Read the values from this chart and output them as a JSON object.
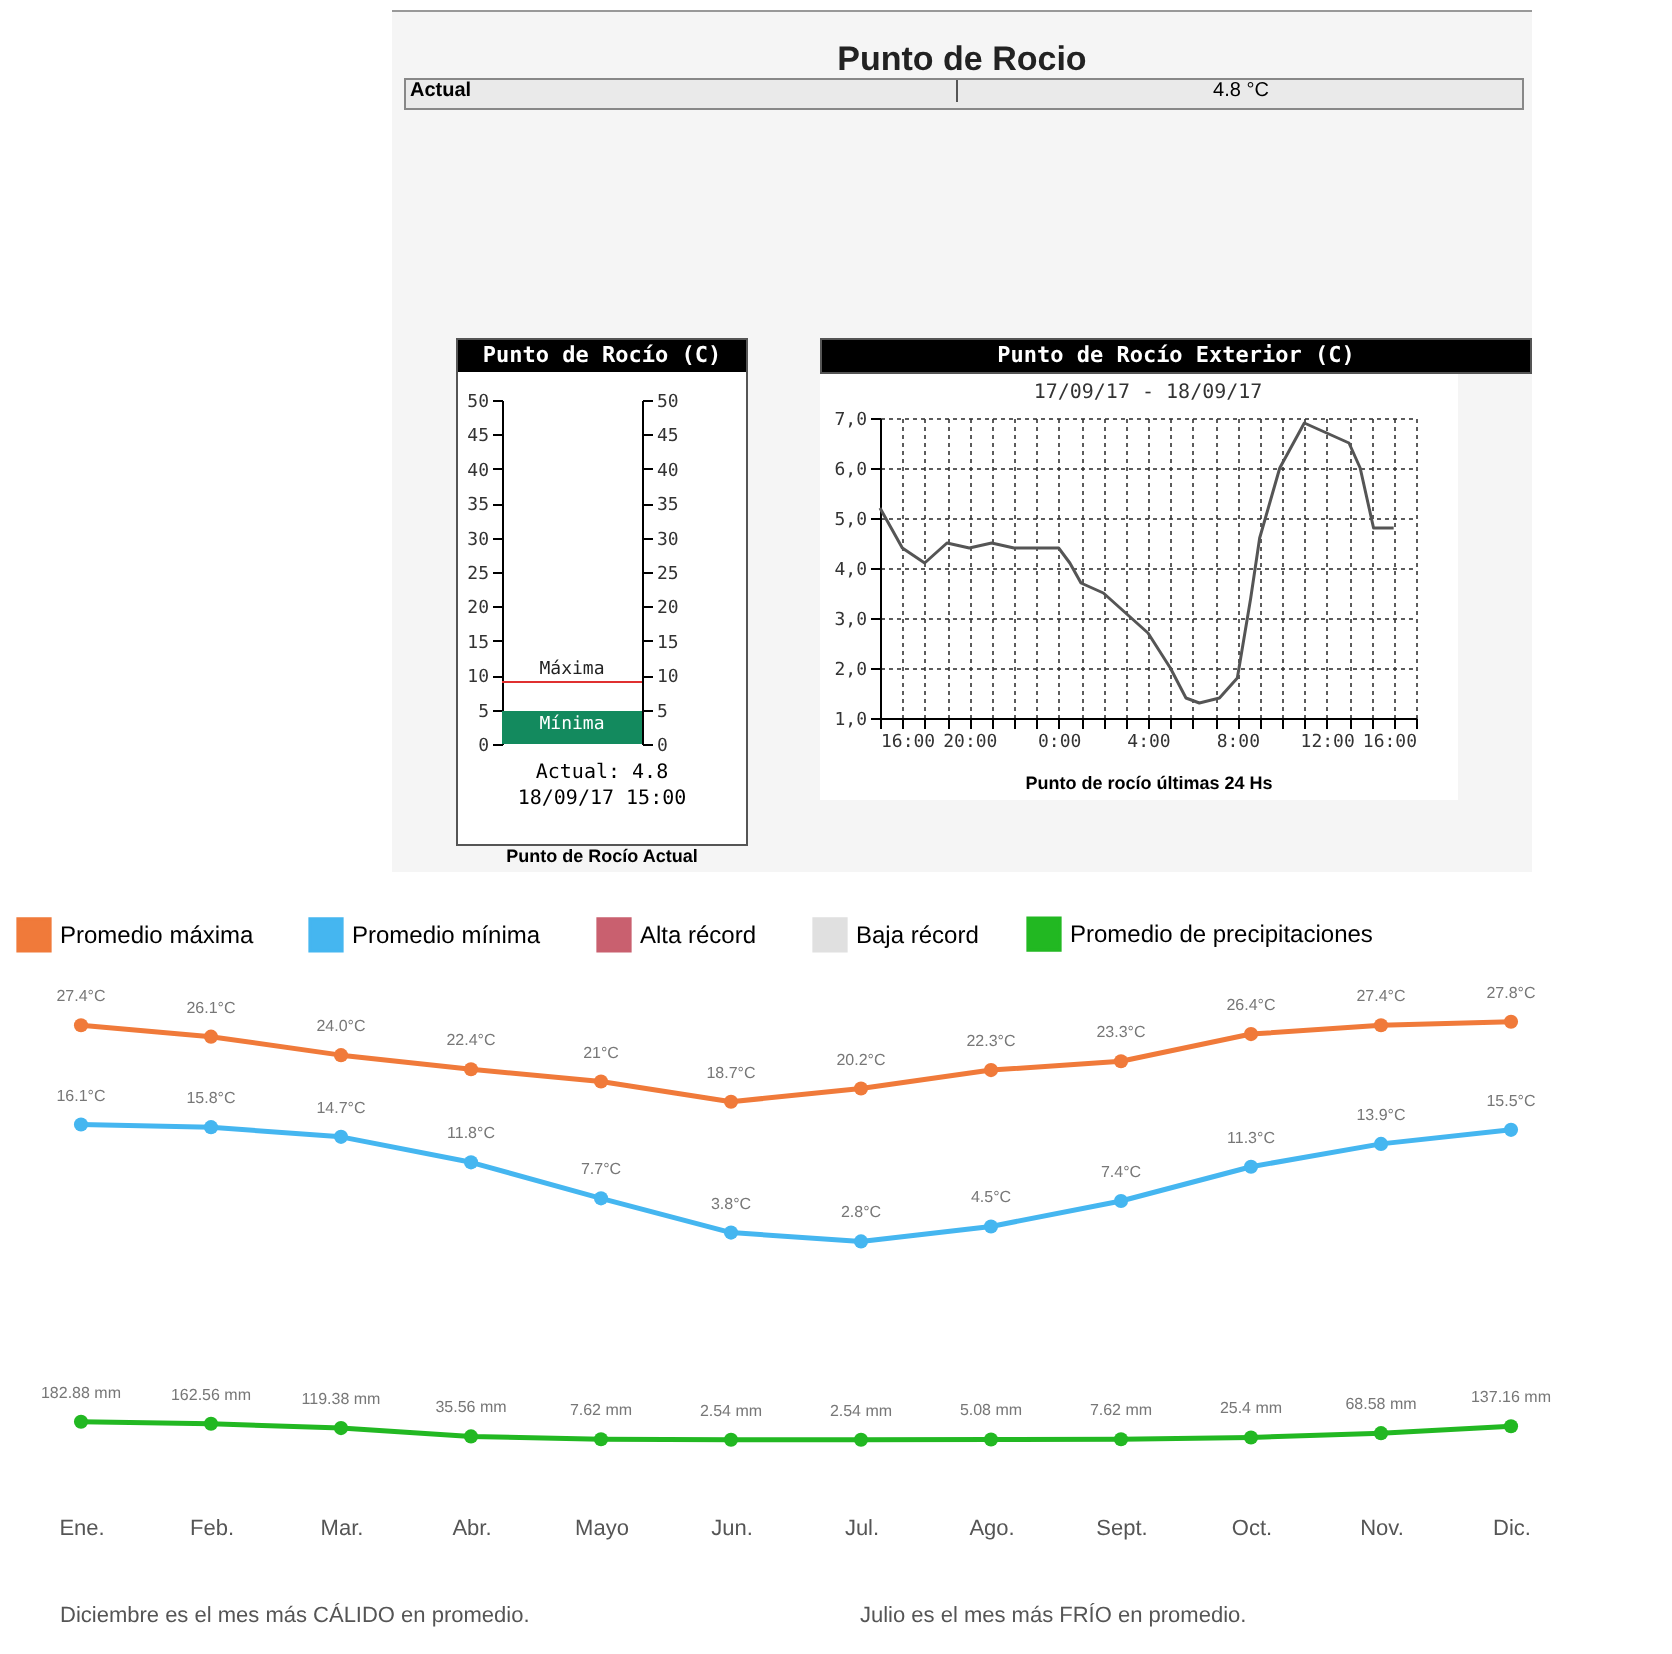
{
  "chart_data": [
    {
      "type": "other",
      "title": "Punto de Rocio",
      "annotations": [
        "Actual",
        "4.8 °C"
      ]
    },
    {
      "type": "bar",
      "title": "Punto de Rocío (C)",
      "xlabel": "Punto de Rocío Actual",
      "categories": [
        null
      ],
      "values": [
        4.8
      ],
      "colors": [
        "#138a5e"
      ],
      "ylim": [
        0,
        50
      ],
      "yticks": [
        0,
        5,
        10,
        15,
        20,
        25,
        30,
        35,
        40,
        45,
        50
      ],
      "y2lim": [
        0,
        50
      ],
      "y2ticks": [
        0,
        5,
        10,
        15,
        20,
        25,
        30,
        35,
        40,
        45,
        50
      ],
      "ref_lines": [
        {
          "axis": "y",
          "value": 9,
          "label": "Máxima",
          "color": "#e03030"
        }
      ],
      "annotations": [
        "Mínima",
        "Actual: 4.8",
        "18/09/17 15:00"
      ]
    },
    {
      "type": "line",
      "title": "Punto de Rocío Exterior (C)",
      "subtitle": "17/09/17 - 18/09/17",
      "xlabel": "Punto de rocío últimas 24 Hs",
      "grid": true,
      "marker": "none",
      "line_style": "solid",
      "x": [
        "--09-17T16:00",
        "--09-17T16:30",
        "--09-17T17:00",
        "--09-17T18:00",
        "--09-17T19:00",
        "--09-17T20:00",
        "--09-17T21:00",
        "--09-17T22:00",
        "--09-17T23:00",
        "--09-18T00:00",
        "--09-18T00:30",
        "--09-18T01:00",
        "--09-18T02:00",
        "--09-18T03:00",
        "--09-18T04:00",
        "--09-18T05:00",
        "--09-18T05:42",
        "--09-18T06:18",
        "--09-18T07:12",
        "--09-18T08:00",
        "--09-18T08:36",
        "--09-18T09:00",
        "--09-18T09:54",
        "--09-18T11:00",
        "--09-18T12:00",
        "--09-18T13:00",
        "--09-18T13:30",
        "--09-18T14:06",
        "--09-18T15:00"
      ],
      "series": [
        {
          "color": "#555555",
          "values": [
            5.2,
            4.8,
            4.4,
            4.1,
            4.5,
            4.4,
            4.5,
            4.4,
            4.4,
            4.4,
            4.1,
            3.7,
            3.5,
            3.1,
            2.7,
            2.0,
            1.4,
            1.3,
            1.4,
            1.8,
            3.4,
            4.6,
            6.0,
            6.9,
            6.7,
            6.5,
            6.0,
            4.8,
            4.8
          ]
        }
      ],
      "xlim": [
        "--09-17T16:00",
        "--09-18T16:00"
      ],
      "xticks": [
        {
          "value": "--09-17T16:00",
          "label": "16:00"
        },
        {
          "value": "--09-17T17:00",
          "label": null
        },
        {
          "value": "--09-17T18:00",
          "label": null
        },
        {
          "value": "--09-17T19:00",
          "label": null
        },
        {
          "value": "--09-17T20:00",
          "label": "20:00"
        },
        {
          "value": "--09-17T21:00",
          "label": null
        },
        {
          "value": "--09-17T22:00",
          "label": null
        },
        {
          "value": "--09-17T23:00",
          "label": null
        },
        {
          "value": "--09-18T00:00",
          "label": "0:00"
        },
        {
          "value": "--09-18T01:00",
          "label": null
        },
        {
          "value": "--09-18T02:00",
          "label": null
        },
        {
          "value": "--09-18T03:00",
          "label": null
        },
        {
          "value": "--09-18T04:00",
          "label": "4:00"
        },
        {
          "value": "--09-18T05:00",
          "label": null
        },
        {
          "value": "--09-18T06:00",
          "label": null
        },
        {
          "value": "--09-18T07:00",
          "label": null
        },
        {
          "value": "--09-18T08:00",
          "label": "8:00"
        },
        {
          "value": "--09-18T09:00",
          "label": null
        },
        {
          "value": "--09-18T10:00",
          "label": null
        },
        {
          "value": "--09-18T11:00",
          "label": null
        },
        {
          "value": "--09-18T12:00",
          "label": "12:00"
        },
        {
          "value": "--09-18T13:00",
          "label": null
        },
        {
          "value": "--09-18T14:00",
          "label": null
        },
        {
          "value": "--09-18T15:00",
          "label": null
        },
        {
          "value": "--09-18T16:00",
          "label": "16:00"
        }
      ],
      "ylim": [
        1,
        7
      ],
      "yticks": [
        {
          "value": 1,
          "label": "1,0"
        },
        {
          "value": 2,
          "label": "2,0"
        },
        {
          "value": 3,
          "label": "3,0"
        },
        {
          "value": 4,
          "label": "4,0"
        },
        {
          "value": 5,
          "label": "5,0"
        },
        {
          "value": 6,
          "label": "6,0"
        },
        {
          "value": 7,
          "label": "7,0"
        }
      ]
    },
    {
      "type": "line",
      "legend": "top left",
      "marker": "circle",
      "categories": [
        null,
        null,
        null,
        null,
        null,
        null,
        null,
        null,
        null,
        null,
        null,
        null
      ],
      "series": [
        {
          "name": "Promedio máxima",
          "color": "#f07a3a",
          "values": [
            27.4,
            26.1,
            24.0,
            22.4,
            21,
            18.7,
            20.2,
            22.3,
            23.3,
            26.4,
            27.4,
            27.8
          ],
          "value_labels": [
            "27.4°C",
            "26.1°C",
            "24.0°C",
            "22.4°C",
            "21°C",
            "18.7°C",
            "20.2°C",
            "22.3°C",
            "23.3°C",
            "26.4°C",
            "27.4°C",
            "27.8°C"
          ]
        },
        {
          "name": "Promedio mínima",
          "color": "#45b6f0",
          "values": [
            16.1,
            15.8,
            14.7,
            11.8,
            7.7,
            3.8,
            2.8,
            4.5,
            7.4,
            11.3,
            13.9,
            15.5
          ],
          "value_labels": [
            "16.1°C",
            "15.8°C",
            "14.7°C",
            "11.8°C",
            "7.7°C",
            "3.8°C",
            "2.8°C",
            "4.5°C",
            "7.4°C",
            "11.3°C",
            "13.9°C",
            "15.5°C"
          ]
        },
        {
          "name": "Alta récord",
          "color": "#c9606f",
          "values": [
            null,
            null,
            null,
            null,
            null,
            null,
            null,
            null,
            null,
            null,
            null,
            null
          ]
        },
        {
          "name": "Baja récord",
          "color": "#e0e0e0",
          "values": [
            null,
            null,
            null,
            null,
            null,
            null,
            null,
            null,
            null,
            null,
            null,
            null
          ]
        }
      ]
    },
    {
      "type": "line",
      "legend": "top",
      "marker": "circle",
      "categories": [
        "Ene.",
        "Feb.",
        "Mar.",
        "Abr.",
        "Mayo",
        "Jun.",
        "Jul.",
        "Ago.",
        "Sept.",
        "Oct.",
        "Nov.",
        "Dic."
      ],
      "series": [
        {
          "name": "Promedio de precipitaciones",
          "color": "#22b822",
          "values": [
            182.88,
            162.56,
            119.38,
            35.56,
            7.62,
            2.54,
            2.54,
            5.08,
            7.62,
            25.4,
            68.58,
            137.16
          ],
          "value_labels": [
            "182.88 mm",
            "162.56 mm",
            "119.38 mm",
            "35.56 mm",
            "7.62 mm",
            "2.54 mm",
            "2.54 mm",
            "5.08 mm",
            "7.62 mm",
            "25.4 mm",
            "68.58 mm",
            "137.16 mm"
          ]
        }
      ],
      "annotations": [
        "Diciembre es el mes más CÁLIDO en promedio.",
        "Julio es el mes más FRÍO en promedio."
      ]
    }
  ]
}
